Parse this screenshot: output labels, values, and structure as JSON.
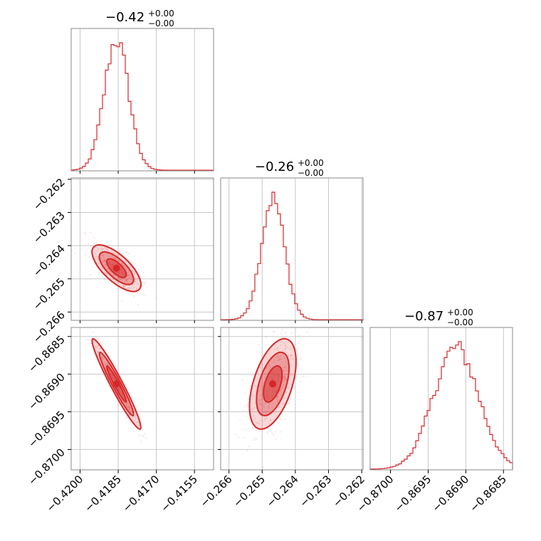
{
  "chart_data": {
    "type": "corner",
    "color": "#d62728",
    "parameters": [
      {
        "title_value": "−0.42",
        "title_plus": "+0.00",
        "title_minus": "−0.00",
        "range": [
          -0.42035,
          -0.41475
        ],
        "ticks": [
          -0.42,
          -0.4185,
          -0.417,
          -0.4155
        ],
        "tick_labels": [
          "−0.4200",
          "−0.4185",
          "−0.4170",
          "−0.4155"
        ],
        "mean": -0.41857,
        "sd": 0.00048
      },
      {
        "title_value": "−0.26",
        "title_plus": "+0.00",
        "title_minus": "−0.00",
        "range": [
          -0.26625,
          -0.26196
        ],
        "ticks": [
          -0.262,
          -0.263,
          -0.264,
          -0.265,
          -0.266
        ],
        "tick_labels": [
          "−0.262",
          "−0.263",
          "−0.264",
          "−0.265",
          "−0.266"
        ],
        "mean": -0.26468,
        "sd": 0.00035
      },
      {
        "title_value": "−0.87",
        "title_plus": "+0.00",
        "title_minus": "−0.00",
        "range": [
          -0.87027,
          -0.86838
        ],
        "ticks": [
          -0.8685,
          -0.869,
          -0.8695,
          -0.87
        ],
        "tick_labels": [
          "−0.8685",
          "−0.8690",
          "−0.8695",
          "−0.8700"
        ],
        "mean": -0.86913,
        "sd": 0.0003
      }
    ],
    "correlations": [
      {
        "pair": [
          0,
          1
        ],
        "r": -0.7
      },
      {
        "pair": [
          0,
          2
        ],
        "r": -0.96
      },
      {
        "pair": [
          1,
          2
        ],
        "r": 0.5
      }
    ],
    "grid": true,
    "x_tick_label_rotation_deg": 45,
    "y_tick_label_rotation_deg": 45
  }
}
